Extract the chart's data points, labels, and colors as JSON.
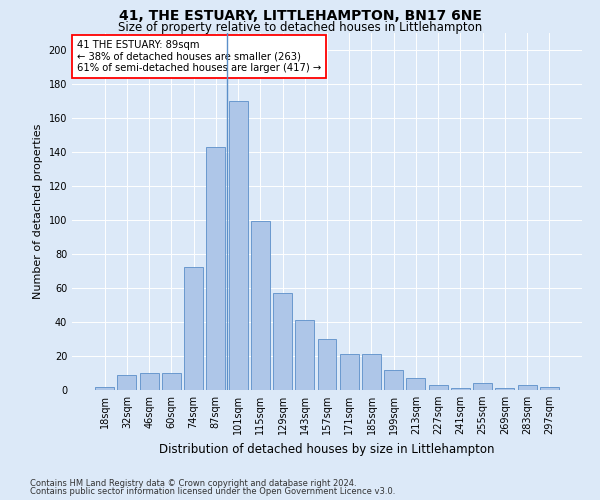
{
  "title": "41, THE ESTUARY, LITTLEHAMPTON, BN17 6NE",
  "subtitle": "Size of property relative to detached houses in Littlehampton",
  "xlabel": "Distribution of detached houses by size in Littlehampton",
  "ylabel": "Number of detached properties",
  "footnote1": "Contains HM Land Registry data © Crown copyright and database right 2024.",
  "footnote2": "Contains public sector information licensed under the Open Government Licence v3.0.",
  "annotation_line1": "41 THE ESTUARY: 89sqm",
  "annotation_line2": "← 38% of detached houses are smaller (263)",
  "annotation_line3": "61% of semi-detached houses are larger (417) →",
  "bar_labels": [
    "18sqm",
    "32sqm",
    "46sqm",
    "60sqm",
    "74sqm",
    "87sqm",
    "101sqm",
    "115sqm",
    "129sqm",
    "143sqm",
    "157sqm",
    "171sqm",
    "185sqm",
    "199sqm",
    "213sqm",
    "227sqm",
    "241sqm",
    "255sqm",
    "269sqm",
    "283sqm",
    "297sqm"
  ],
  "bar_values": [
    2,
    9,
    10,
    10,
    72,
    143,
    170,
    99,
    57,
    41,
    30,
    21,
    21,
    12,
    7,
    3,
    1,
    4,
    1,
    3,
    2
  ],
  "bar_color": "#aec6e8",
  "bar_edge_color": "#5b8fc9",
  "background_color": "#dce9f8",
  "plot_bg_color": "#dce9f8",
  "annotation_box_color": "white",
  "annotation_box_edge": "red",
  "vline_color": "#5b8fc9",
  "vline_between": 5.5,
  "ylim": [
    0,
    210
  ],
  "yticks": [
    0,
    20,
    40,
    60,
    80,
    100,
    120,
    140,
    160,
    180,
    200
  ],
  "title_fontsize": 10,
  "subtitle_fontsize": 8.5,
  "xlabel_fontsize": 8.5,
  "ylabel_fontsize": 8,
  "tick_fontsize": 7,
  "annotation_fontsize": 7.2,
  "footnote_fontsize": 6
}
